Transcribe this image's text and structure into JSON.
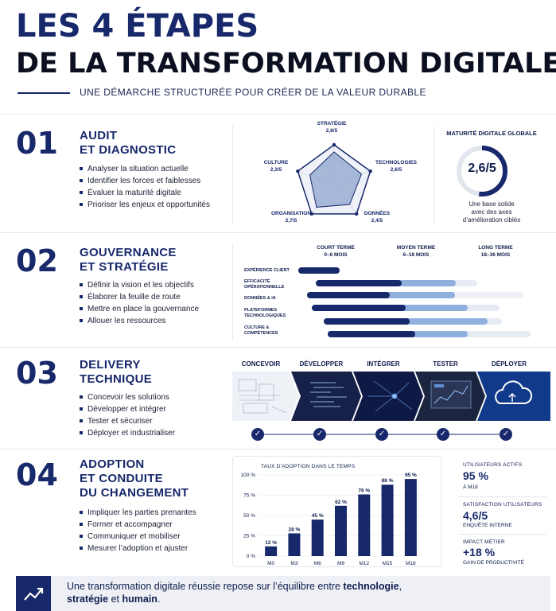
{
  "header": {
    "title_line1": "LES 4 ÉTAPES",
    "title_line2": "DE LA TRANSFORMATION DIGITALE",
    "subtitle": "UNE DÉMARCHE STRUCTURÉE POUR CRÉER DE LA VALEUR DURABLE"
  },
  "s1": {
    "num": "01",
    "title1": "AUDIT",
    "title2": "ET DIAGNOSTIC",
    "bullets": [
      "Analyser la situation actuelle",
      "Identifier les forces et faiblesses",
      "Évaluer la maturité digitale",
      "Prioriser les enjeux et opportunités"
    ],
    "radar": {
      "axes": [
        {
          "label": "STRATÉGIE",
          "value": "2,8/5",
          "score": 2.8
        },
        {
          "label": "TECHNOLOGIES",
          "value": "2,6/5",
          "score": 2.6
        },
        {
          "label": "DONNÉES",
          "value": "2,4/5",
          "score": 2.4
        },
        {
          "label": "ORGANISATION",
          "value": "2,7/5",
          "score": 2.7
        },
        {
          "label": "CULTURE",
          "value": "2,3/5",
          "score": 2.3
        }
      ],
      "max": 5
    },
    "maturity": {
      "title": "MATURITÉ DIGITALE GLOBALE",
      "value": "2,6/5",
      "score": 2.6,
      "note_l1": "Une base solide",
      "note_l2": "avec des axes",
      "note_l3": "d’amélioration ciblés"
    }
  },
  "s2": {
    "num": "02",
    "title1": "GOUVERNANCE",
    "title2": "ET STRATÉGIE",
    "bullets": [
      "Définir la vision et les objectifs",
      "Élaborer la feuille de route",
      "Mettre en place la gouvernance",
      "Allouer les ressources"
    ],
    "phases": [
      {
        "l1": "COURT TERME",
        "l2": "0–6 MOIS"
      },
      {
        "l1": "MOYEN TERME",
        "l2": "6–18 MOIS"
      },
      {
        "l1": "LONG TERME",
        "l2": "18–36 MOIS"
      }
    ],
    "rows": [
      {
        "l1": "EXPÉRIENCE CLIENT",
        "l2": ""
      },
      {
        "l1": "EFFICACITÉ",
        "l2": "OPÉRATIONNELLE"
      },
      {
        "l1": "DONNÉES & IA",
        "l2": ""
      },
      {
        "l1": "PLATEFORMES",
        "l2": "TECHNOLOGIQUES"
      },
      {
        "l1": "CULTURE &",
        "l2": "COMPÉTENCES"
      }
    ]
  },
  "s3": {
    "num": "03",
    "title1": "DELIVERY",
    "title2": "TECHNIQUE",
    "bullets": [
      "Concevoir les solutions",
      "Développer et intégrer",
      "Tester et sécuriser",
      "Déployer et industrialiser"
    ],
    "steps": [
      "CONCEVOIR",
      "DÉVELOPPER",
      "INTÉGRER",
      "TESTER",
      "DÉPLOYER"
    ]
  },
  "s4": {
    "num": "04",
    "title1": "ADOPTION",
    "title2": "ET CONDUITE",
    "title3": "DU CHANGEMENT",
    "bullets": [
      "Impliquer les parties prenantes",
      "Former et accompagner",
      "Communiquer et mobiliser",
      "Mesurer l’adoption et ajuster"
    ],
    "kpis": [
      {
        "label": "UTILISATEURS ACTIFS",
        "value": "95 %",
        "sub": "À M18"
      },
      {
        "label": "SATISFACTION UTILISATEURS",
        "value": "4,6/5",
        "sub": "ENQUÊTE INTERNE"
      },
      {
        "label": "IMPACT MÉTIER",
        "value": "+18 %",
        "sub": "GAIN DE PRODUCTIVITÉ"
      }
    ]
  },
  "chart_data": {
    "type": "bar",
    "title": "TAUX D’ADOPTION DANS LE TEMPS",
    "categories": [
      "M0",
      "M3",
      "M6",
      "M9",
      "M12",
      "M15",
      "M18"
    ],
    "values": [
      12,
      28,
      45,
      62,
      76,
      88,
      95
    ],
    "value_labels": [
      "12 %",
      "28 %",
      "45 %",
      "62 %",
      "76 %",
      "88 %",
      "95 %"
    ],
    "y_ticks": [
      "0 %",
      "25 %",
      "50 %",
      "75 %",
      "100 %"
    ],
    "ylim": [
      0,
      100
    ],
    "grid": true,
    "color": "#17286b"
  },
  "footer": {
    "text_pre": "Une transformation digitale réussie repose sur l’équilibre entre ",
    "bold1": "technologie",
    "mid": ",",
    "bold2": "stratégie",
    "and": " et ",
    "bold3": "humain",
    "end": "."
  },
  "colors": {
    "navy": "#17286b",
    "light": "#8fafdd",
    "pale": "#e6ebf4"
  }
}
